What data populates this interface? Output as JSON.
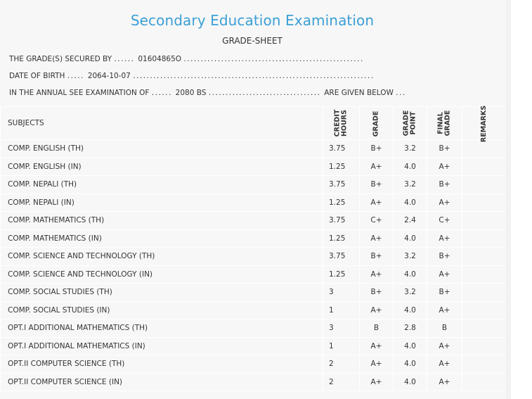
{
  "header": {
    "title": "Secondary Education Examination",
    "subtitle": "GRADE-SHEET"
  },
  "info": {
    "line1_label": "THE GRADE(S) SECURED BY",
    "line1_value": "01604865O",
    "line2_label": "DATE OF BIRTH",
    "line2_value": "2064-10-07",
    "line3_label": "IN THE ANNUAL SEE EXAMINATION OF",
    "line3_value": "2080 BS",
    "line3_suffix": "ARE GIVEN BELOW"
  },
  "table": {
    "headers": {
      "subjects": "SUBJECTS",
      "credit_line1": "CREDIT",
      "credit_line2": "HOURS",
      "grade": "GRADE",
      "grade_point_line1": "GRADE",
      "grade_point_line2": "POINT",
      "final_line1": "FINAL",
      "final_line2": "GRADE",
      "remarks": "REMARKS"
    },
    "rows": [
      {
        "subject": "COMP. ENGLISH (TH)",
        "credit": "3.75",
        "grade": "B+",
        "point": "3.2",
        "final": "B+",
        "remarks": ""
      },
      {
        "subject": "COMP. ENGLISH (IN)",
        "credit": "1.25",
        "grade": "A+",
        "point": "4.0",
        "final": "A+",
        "remarks": ""
      },
      {
        "subject": "COMP. NEPALI (TH)",
        "credit": "3.75",
        "grade": "B+",
        "point": "3.2",
        "final": "B+",
        "remarks": ""
      },
      {
        "subject": "COMP. NEPALI (IN)",
        "credit": "1.25",
        "grade": "A+",
        "point": "4.0",
        "final": "A+",
        "remarks": ""
      },
      {
        "subject": "COMP. MATHEMATICS (TH)",
        "credit": "3.75",
        "grade": "C+",
        "point": "2.4",
        "final": "C+",
        "remarks": ""
      },
      {
        "subject": "COMP. MATHEMATICS (IN)",
        "credit": "1.25",
        "grade": "A+",
        "point": "4.0",
        "final": "A+",
        "remarks": ""
      },
      {
        "subject": "COMP. SCIENCE AND TECHNOLOGY (TH)",
        "credit": "3.75",
        "grade": "B+",
        "point": "3.2",
        "final": "B+",
        "remarks": ""
      },
      {
        "subject": "COMP. SCIENCE AND TECHNOLOGY (IN)",
        "credit": "1.25",
        "grade": "A+",
        "point": "4.0",
        "final": "A+",
        "remarks": ""
      },
      {
        "subject": "COMP. SOCIAL STUDIES (TH)",
        "credit": "3",
        "grade": "B+",
        "point": "3.2",
        "final": "B+",
        "remarks": ""
      },
      {
        "subject": "COMP. SOCIAL STUDIES (IN)",
        "credit": "1",
        "grade": "A+",
        "point": "4.0",
        "final": "A+",
        "remarks": ""
      },
      {
        "subject": "OPT.I ADDITIONAL MATHEMATICS (TH)",
        "credit": "3",
        "grade": "B",
        "point": "2.8",
        "final": "B",
        "remarks": ""
      },
      {
        "subject": "OPT.I ADDITIONAL MATHEMATICS (IN)",
        "credit": "1",
        "grade": "A+",
        "point": "4.0",
        "final": "A+",
        "remarks": ""
      },
      {
        "subject": "OPT.II COMPUTER SCIENCE (TH)",
        "credit": "2",
        "grade": "A+",
        "point": "4.0",
        "final": "A+",
        "remarks": ""
      },
      {
        "subject": "OPT.II COMPUTER SCIENCE (IN)",
        "credit": "2",
        "grade": "A+",
        "point": "4.0",
        "final": "A+",
        "remarks": ""
      }
    ]
  }
}
